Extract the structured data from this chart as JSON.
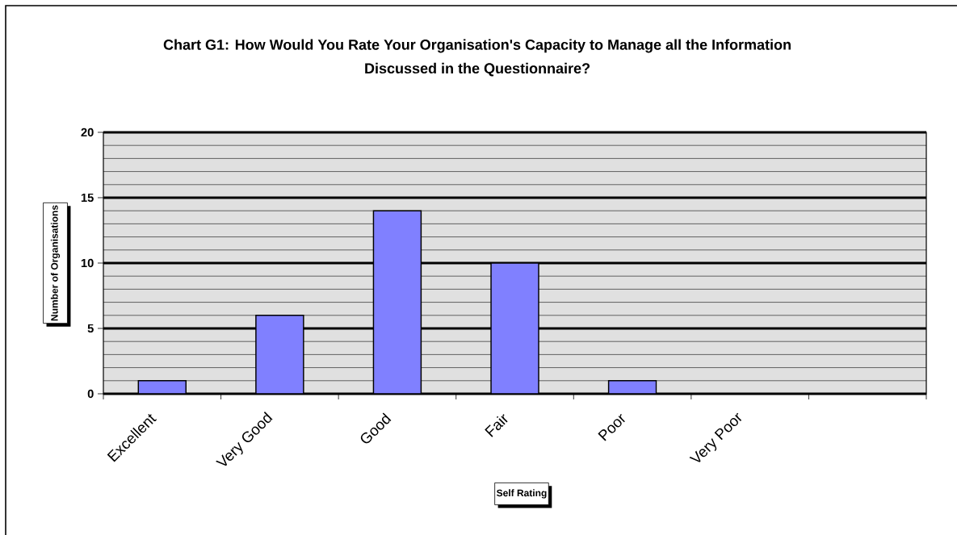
{
  "chart_data": {
    "type": "bar",
    "title": "Chart G1: How Would You Rate Your Organisation's Capacity to Manage all the Information Discussed in the Questionnaire?",
    "xlabel": "Self Rating",
    "ylabel": "Number of Organisations",
    "categories": [
      "Excellent",
      "Very Good",
      "Good",
      "Fair",
      "Poor",
      "Very Poor",
      null
    ],
    "values": [
      1,
      6,
      14,
      10,
      1,
      null,
      null
    ],
    "color": "#8080ff",
    "ylim": [
      0,
      20
    ],
    "yticks": [
      0,
      5,
      10,
      15,
      20
    ],
    "grid": "y"
  }
}
